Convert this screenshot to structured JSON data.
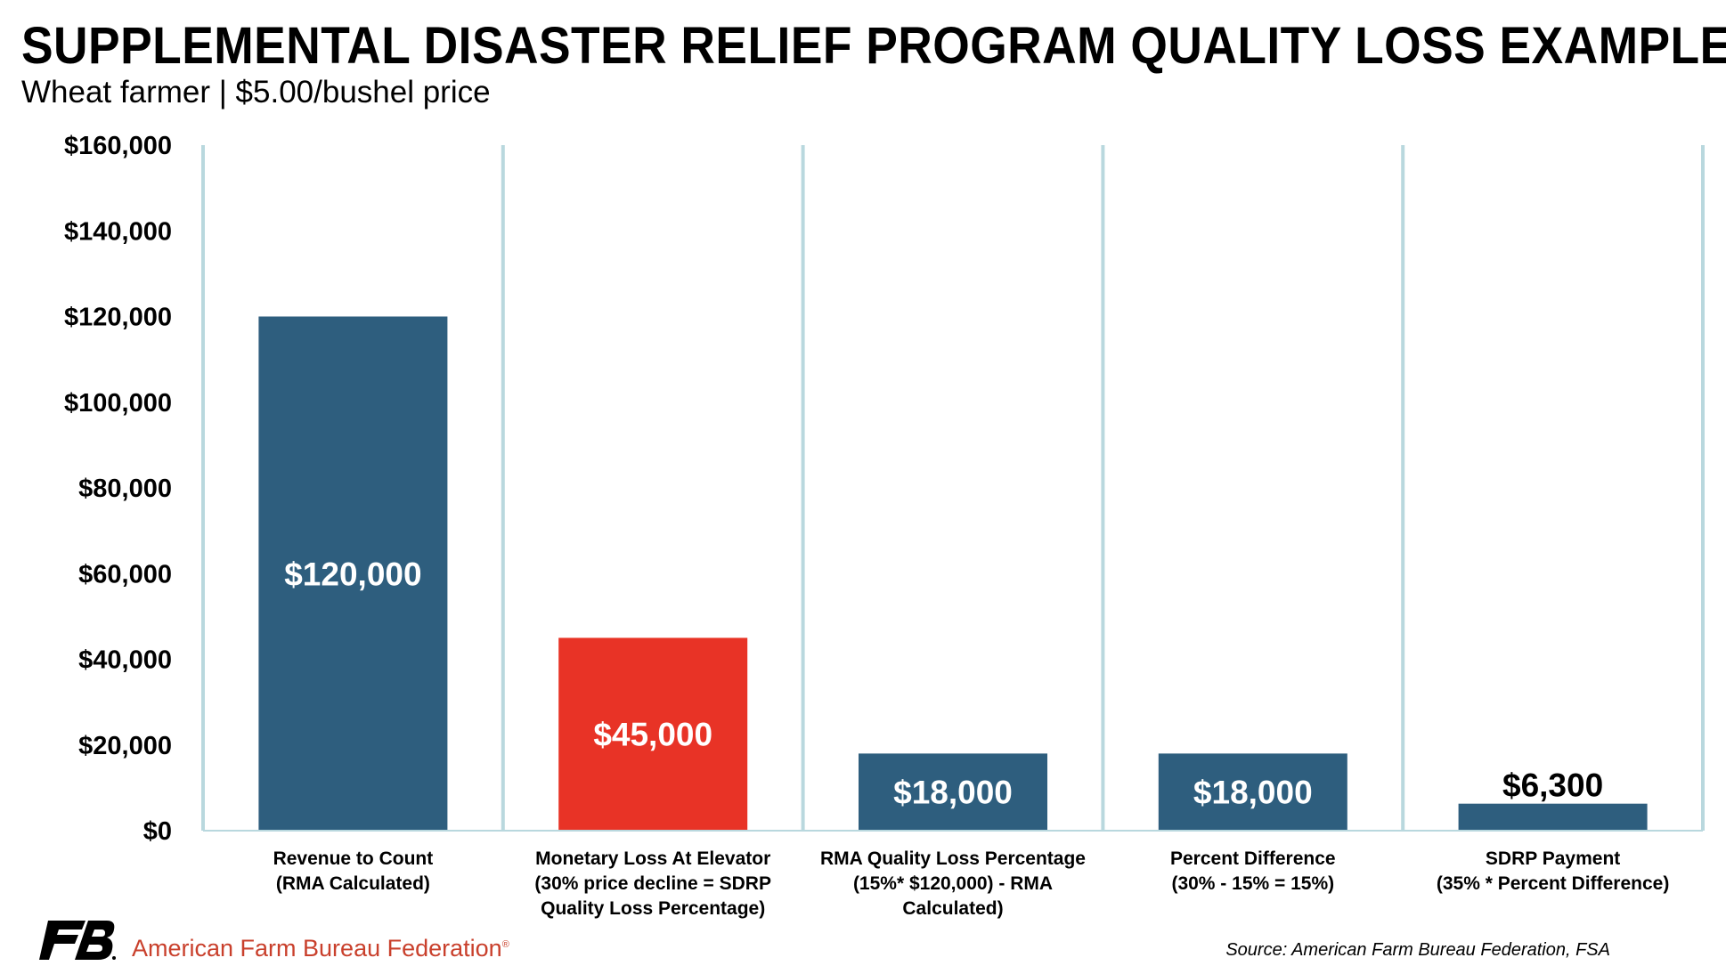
{
  "chart_data": {
    "type": "bar",
    "title": "SUPPLEMENTAL DISASTER RELIEF PROGRAM QUALITY LOSS EXAMPLE",
    "subtitle": "Wheat farmer | $5.00/bushel price",
    "categories": [
      [
        "Revenue to Count",
        "(RMA Calculated)"
      ],
      [
        "Monetary Loss At Elevator",
        "(30% price decline = SDRP",
        "Quality Loss Percentage)"
      ],
      [
        "RMA Quality Loss Percentage",
        "(15%* $120,000) - RMA",
        "Calculated)"
      ],
      [
        "Percent Difference",
        "(30% - 15% = 15%)"
      ],
      [
        "SDRP Payment",
        "(35% * Percent Difference)"
      ]
    ],
    "values": [
      120000,
      45000,
      18000,
      18000,
      6300
    ],
    "data_labels": [
      "$120,000",
      "$45,000",
      "$18,000",
      "$18,000",
      "$6,300"
    ],
    "bar_colors": [
      "#2e5e7e",
      "#e83326",
      "#2e5e7e",
      "#2e5e7e",
      "#2e5e7e"
    ],
    "gridline_color": "#b9d8de",
    "ylim": [
      0,
      160000
    ],
    "yticks": [
      0,
      20000,
      40000,
      60000,
      80000,
      100000,
      120000,
      140000,
      160000
    ],
    "ytick_labels": [
      "$0",
      "$20,000",
      "$40,000",
      "$60,000",
      "$80,000",
      "$100,000",
      "$120,000",
      "$140,000",
      "$160,000"
    ],
    "xlabel": "",
    "ylabel": ""
  },
  "footer": {
    "logo_icon": "fb-logo-icon",
    "organization": "American Farm Bureau Federation",
    "org_color": "#c9402c",
    "source": "Source: American Farm Bureau Federation, FSA"
  }
}
